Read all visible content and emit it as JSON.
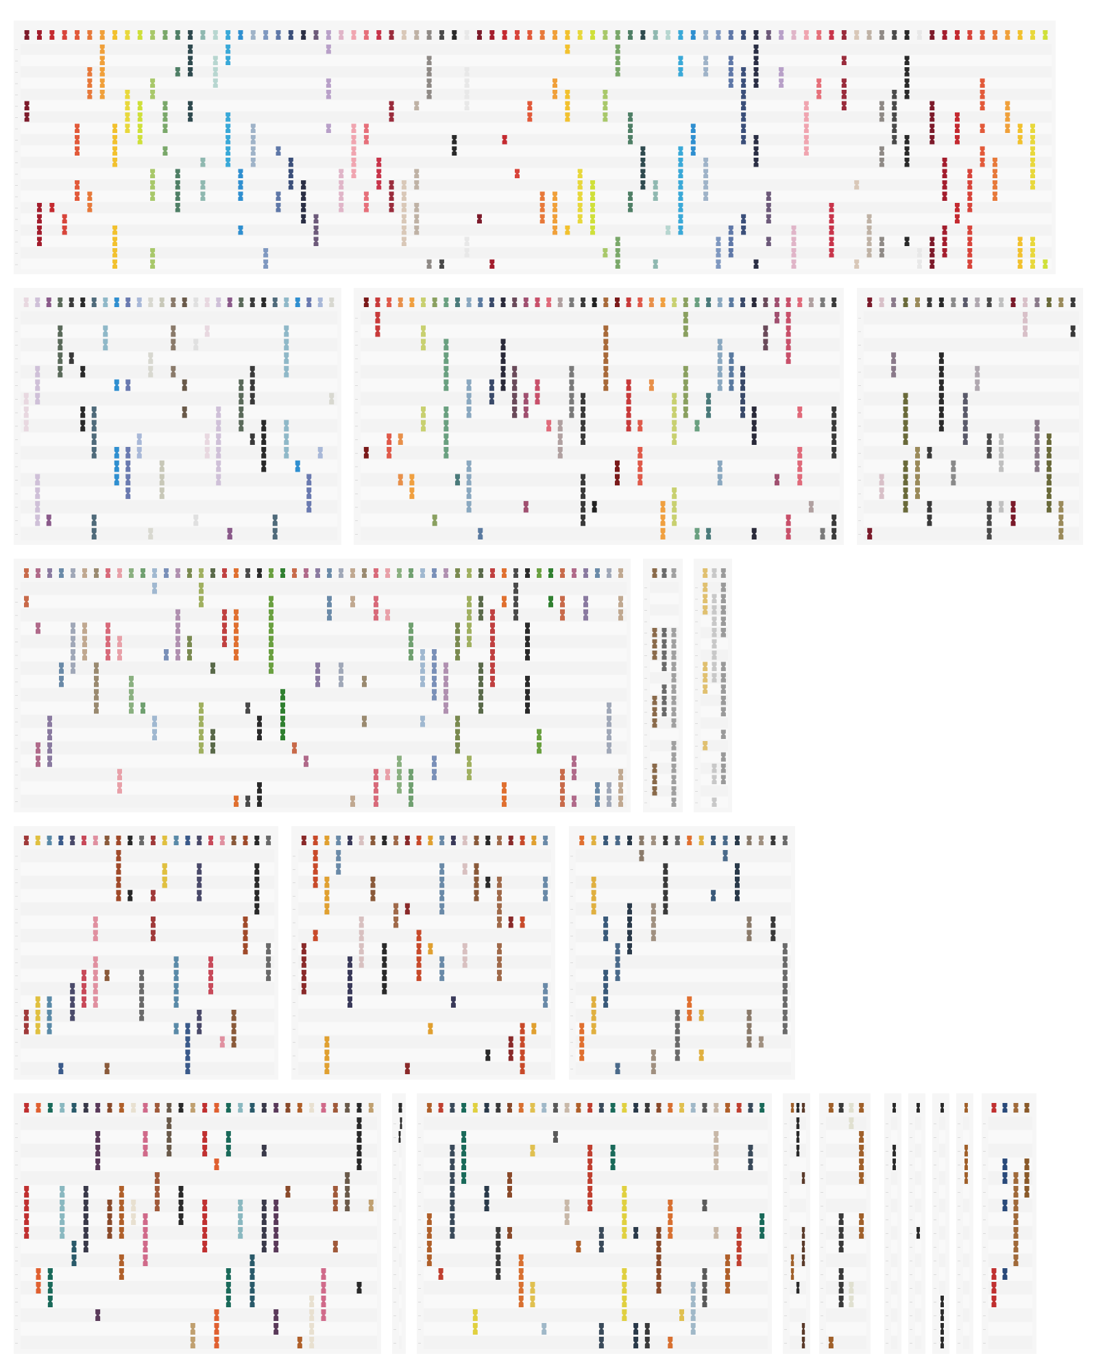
{
  "page": {
    "title": ""
  },
  "chart_data": [
    {
      "id": "p1",
      "type": "scatter",
      "title": "",
      "rows": 20,
      "cols": 82,
      "marks_per_col": 3,
      "seed": 11,
      "palette": [
        "#7d1b2b",
        "#a31d2d",
        "#c42a30",
        "#d8453b",
        "#e25a3a",
        "#e7793a",
        "#f0a03a",
        "#f2c12e",
        "#e8d83c",
        "#cfe03a",
        "#a8c86a",
        "#7aa86a",
        "#4f7f66",
        "#2f4a4f",
        "#8fb8b0",
        "#b7d6d0",
        "#3aa9d8",
        "#2f8fd0",
        "#9fb3c8",
        "#7f98c0",
        "#5f78a8",
        "#3b4f7a",
        "#2b2f45",
        "#6d5a7a",
        "#b8a0c8",
        "#e0b5c8",
        "#f0a5b0",
        "#e6707a",
        "#c8344a",
        "#9a2c3c",
        "#d9c8b8",
        "#bfb2a5",
        "#8f8a86",
        "#4a4a4a",
        "#2a2a2a",
        "#e8e8e8"
      ]
    },
    {
      "id": "p2",
      "type": "scatter",
      "title": "",
      "rows": 17,
      "cols": 28,
      "marks_per_col": 2,
      "seed": 23,
      "palette": [
        "#e8d8e0",
        "#cfc0d8",
        "#8a5a8a",
        "#5a6a5a",
        "#3a3a3a",
        "#2a2a2a",
        "#4f6a7a",
        "#8fb8c8",
        "#2f8fd0",
        "#6a7ab0",
        "#a8b8d8",
        "#d8d8d0",
        "#c8c8b8",
        "#8a7a6a",
        "#6a5a4a",
        "#e0e0e0"
      ]
    },
    {
      "id": "p3",
      "type": "scatter",
      "title": "",
      "rows": 17,
      "cols": 42,
      "marks_per_col": 2,
      "seed": 37,
      "palette": [
        "#7a1a1a",
        "#c83a3a",
        "#e05a4a",
        "#e8904a",
        "#f0a040",
        "#c8d070",
        "#8aa060",
        "#6aa080",
        "#4a7a7a",
        "#8aa8c0",
        "#5a7aa0",
        "#3a4a6a",
        "#2a2a3a",
        "#6a4a5a",
        "#a05070",
        "#c8506a",
        "#e06a7a",
        "#b0a0a0",
        "#7a7a7a",
        "#3a3a3a",
        "#222222",
        "#a86a3a"
      ]
    },
    {
      "id": "p4",
      "type": "scatter",
      "title": "",
      "rows": 17,
      "cols": 18,
      "marks_per_col": 2,
      "seed": 41,
      "palette": [
        "#7a1a2a",
        "#d8c0c8",
        "#8a7a8a",
        "#6a6a3a",
        "#9a8a5a",
        "#3a3a3a",
        "#2a2a2a",
        "#8a8a8a",
        "#5a5a6a",
        "#b0a8b0",
        "#4a4a4a",
        "#c0c0c0"
      ]
    },
    {
      "id": "p5",
      "type": "scatter",
      "title": "",
      "rows": 17,
      "cols": 52,
      "marks_per_col": 2,
      "seed": 53,
      "palette": [
        "#c86a4a",
        "#b06a8a",
        "#8a7aa0",
        "#6a8aa8",
        "#a0a8b8",
        "#c0a890",
        "#9a8a70",
        "#d86a7a",
        "#e8a0a8",
        "#8ab080",
        "#70a070",
        "#a0b8d0",
        "#7a90b8",
        "#b090b0",
        "#7a8a50",
        "#a0b060",
        "#5a6a4a",
        "#c04040",
        "#e07030",
        "#4a4a4a",
        "#2a2a2a",
        "#6aa040",
        "#308030"
      ]
    },
    {
      "id": "p6",
      "type": "scatter",
      "title": "",
      "rows": 20,
      "cols": 3,
      "marks_per_col": 12,
      "seed": 61,
      "palette": [
        "#8a6a4a",
        "#6a6a6a",
        "#a0a0a0",
        "#4a4a4a"
      ]
    },
    {
      "id": "p7",
      "type": "scatter",
      "title": "",
      "rows": 20,
      "cols": 3,
      "marks_per_col": 15,
      "seed": 67,
      "palette": [
        "#e0c070",
        "#c8c8c8",
        "#9a9a9a",
        "#2a2a2a"
      ]
    },
    {
      "id": "p8",
      "type": "scatter",
      "title": "",
      "rows": 17,
      "cols": 22,
      "marks_per_col": 2,
      "seed": 71,
      "palette": [
        "#a03a3a",
        "#e0c040",
        "#5a8aa8",
        "#3a5a8a",
        "#4a4a6a",
        "#c84a5a",
        "#e090a0",
        "#8a5a3a",
        "#a04a2a",
        "#2a2a2a",
        "#6a6a6a"
      ]
    },
    {
      "id": "p9",
      "type": "scatter",
      "title": "",
      "rows": 17,
      "cols": 22,
      "marks_per_col": 2,
      "seed": 79,
      "palette": [
        "#8a2a2a",
        "#c84a2a",
        "#e0a030",
        "#6a8aa8",
        "#3a3a5a",
        "#d8c0c0",
        "#8a5a3a",
        "#2a2a2a",
        "#a06a4a"
      ]
    },
    {
      "id": "p10",
      "type": "scatter",
      "title": "",
      "rows": 17,
      "cols": 18,
      "marks_per_col": 2,
      "seed": 83,
      "palette": [
        "#e07030",
        "#e0b040",
        "#3a5a7a",
        "#4a6a8a",
        "#2a3a4a",
        "#8a7a6a",
        "#a09080",
        "#3a3a3a",
        "#6a6a6a"
      ]
    },
    {
      "id": "p11",
      "type": "scatter",
      "title": "",
      "rows": 17,
      "cols": 30,
      "marks_per_col": 2,
      "seed": 89,
      "palette": [
        "#c03030",
        "#e06030",
        "#1a6a5a",
        "#8ab8c0",
        "#2a5a6a",
        "#3a3a4a",
        "#5a3a5a",
        "#8a4a2a",
        "#b0602a",
        "#e8e0d0",
        "#d06a8a",
        "#a05a3a",
        "#6a5a4a",
        "#2a2a2a",
        "#c0a070"
      ]
    },
    {
      "id": "p12",
      "type": "scatter",
      "title": "",
      "rows": 17,
      "cols": 2,
      "marks_per_col": 1,
      "seed": 97,
      "palette": [
        "#2a2a2a"
      ]
    },
    {
      "id": "p13",
      "type": "scatter",
      "title": "",
      "rows": 17,
      "cols": 30,
      "marks_per_col": 2,
      "seed": 101,
      "palette": [
        "#b0602a",
        "#c04030",
        "#3a4a5a",
        "#1a6a5a",
        "#e0d040",
        "#2a3a4a",
        "#3a3a3a",
        "#8a4a2a",
        "#d87030",
        "#e0c050",
        "#a0b8c8",
        "#5a5a5a",
        "#c8b8a8"
      ]
    },
    {
      "id": "p14",
      "type": "scatter",
      "title": "",
      "rows": 17,
      "cols": 3,
      "marks_per_col": 3,
      "seed": 103,
      "palette": [
        "#a0602a",
        "#2a2a2a",
        "#5a3a2a"
      ]
    },
    {
      "id": "p15",
      "type": "scatter",
      "title": "",
      "rows": 17,
      "cols": 4,
      "marks_per_col": 2,
      "seed": 107,
      "palette": [
        "#a0602a",
        "#3a3a3a",
        "#e0e0d0"
      ]
    },
    {
      "id": "p16",
      "type": "scatter",
      "title": "",
      "rows": 17,
      "cols": 1,
      "marks_per_col": 2,
      "seed": 109,
      "palette": [
        "#2a2a2a"
      ]
    },
    {
      "id": "p17",
      "type": "scatter",
      "title": "",
      "rows": 17,
      "cols": 1,
      "marks_per_col": 3,
      "seed": 113,
      "palette": [
        "#2a2a2a"
      ]
    },
    {
      "id": "p18",
      "type": "scatter",
      "title": "",
      "rows": 17,
      "cols": 1,
      "marks_per_col": 2,
      "seed": 127,
      "palette": [
        "#2a2a2a"
      ]
    },
    {
      "id": "p19",
      "type": "scatter",
      "title": "",
      "rows": 17,
      "cols": 1,
      "marks_per_col": 2,
      "seed": 131,
      "palette": [
        "#a0602a"
      ]
    },
    {
      "id": "p20",
      "type": "scatter",
      "title": "",
      "rows": 17,
      "cols": 4,
      "marks_per_col": 3,
      "seed": 137,
      "palette": [
        "#c03030",
        "#2a4a7a",
        "#a06a3a",
        "#8a5a2a"
      ]
    }
  ]
}
